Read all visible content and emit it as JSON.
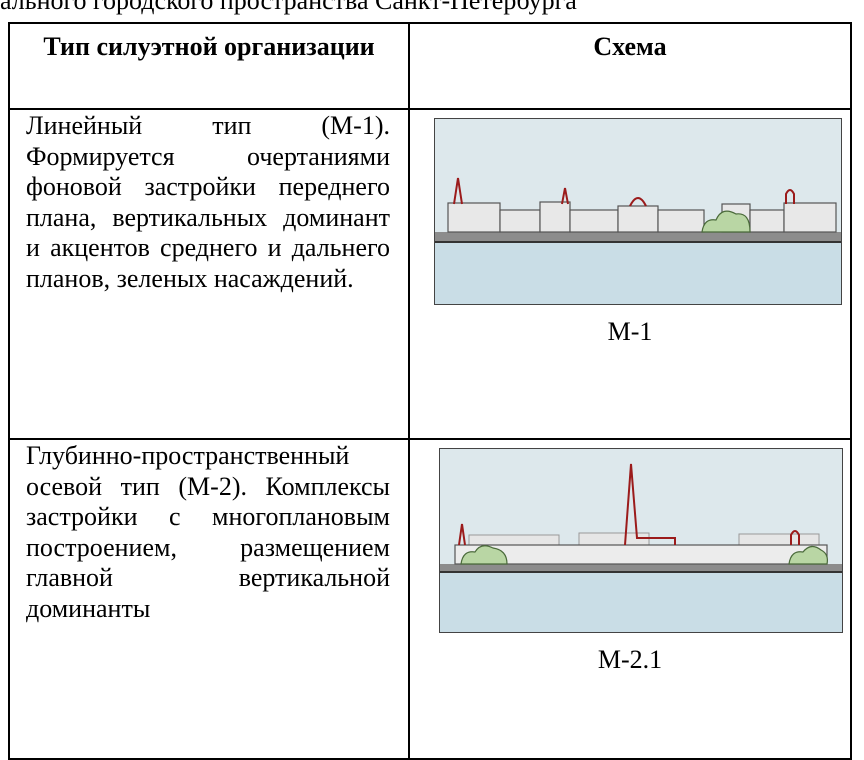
{
  "caption_fragment": "ального городского пространства Санкт-Петербурга",
  "table": {
    "header": [
      "Тип силуэтной организации",
      "Схема"
    ],
    "rows": [
      {
        "description": "Линейный тип (М-1). Формируется очертаниями фоновой застройки переднего плана, вертикальных доминант и акцентов среднего и дальнего планов, зеленых насаждений.",
        "scheme_label": "М-1"
      },
      {
        "description": "Глубинно-пространственный осевой тип (М-2). Комплексы застройки с многоплановым построением, размещением главной вертикальной доминанты",
        "scheme_label": "М-2.1"
      }
    ]
  }
}
